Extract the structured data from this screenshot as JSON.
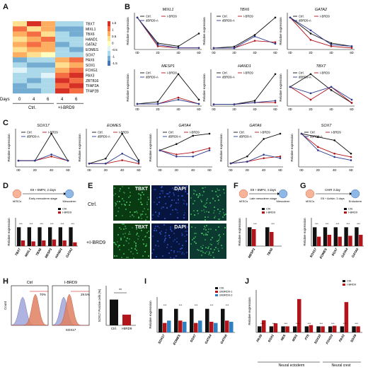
{
  "panels": {
    "A": "A",
    "B": "B",
    "C": "C",
    "D": "D",
    "E": "E",
    "F": "F",
    "G": "G",
    "H": "H",
    "I": "I",
    "J": "J"
  },
  "heatmap": {
    "genes": [
      "TBXT",
      "MIXL1",
      "TBX6",
      "HAND1",
      "GATA2",
      "EOMES",
      "SOX7",
      "PAX6",
      "SOX1",
      "FOXG1",
      "PAX3",
      "ZBTB16",
      "TFAP2A",
      "TFAP2B"
    ],
    "colorbar_ticks": [
      "1.5",
      "1",
      "0.5",
      "0",
      "-0.5",
      "-1",
      "-1.5"
    ],
    "days_label": "Days",
    "days": [
      "0",
      "4",
      "6",
      "4",
      "6"
    ],
    "group_ctrl": "Ctrl.",
    "group_ibrd9": "+I-BRD9"
  },
  "legend": {
    "ctrl": "Ctrl.",
    "ibrd9": "I-BRD9",
    "dbrd9": "dBRD9-A"
  },
  "ylabel_rel": "Relative expression",
  "xticks_days": [
    "0D",
    "2D",
    "4D",
    "6D"
  ],
  "chart_data": [
    {
      "type": "line",
      "title": "MIXL1",
      "series": [
        {
          "name": "Ctrl.",
          "values": [
            1.0,
            0.2,
            0.1,
            0.5
          ]
        },
        {
          "name": "I-BRD9",
          "values": [
            1.0,
            0.1,
            0.05,
            0.05
          ]
        },
        {
          "name": "dBRD9-A",
          "values": [
            1.0,
            0.15,
            0.05,
            0.05
          ]
        }
      ]
    },
    {
      "type": "line",
      "title": "TBX6",
      "series": [
        {
          "name": "Ctrl.",
          "values": [
            0.1,
            0.2,
            1.0,
            2.2
          ]
        },
        {
          "name": "I-BRD9",
          "values": [
            0.1,
            0.1,
            0.6,
            0.5
          ]
        },
        {
          "name": "dBRD9-A",
          "values": [
            0.1,
            0.1,
            0.9,
            0.4
          ]
        }
      ]
    },
    {
      "type": "line",
      "title": "GATA2",
      "series": [
        {
          "name": "Ctrl.",
          "values": [
            1.0,
            0.5,
            0.2,
            0.1
          ]
        },
        {
          "name": "I-BRD9",
          "values": [
            1.0,
            0.3,
            0.1,
            0.05
          ]
        },
        {
          "name": "dBRD9-A",
          "values": [
            1.0,
            0.6,
            0.15,
            0.1
          ]
        }
      ]
    },
    {
      "type": "line",
      "title": "MESP1",
      "series": [
        {
          "name": "Ctrl.",
          "values": [
            0.1,
            0.2,
            1.5,
            0.3
          ]
        },
        {
          "name": "I-BRD9",
          "values": [
            0.1,
            0.1,
            0.4,
            0.1
          ]
        },
        {
          "name": "dBRD9-A",
          "values": [
            0.1,
            0.1,
            0.3,
            0.1
          ]
        }
      ]
    },
    {
      "type": "line",
      "title": "HAND1",
      "series": [
        {
          "name": "Ctrl.",
          "values": [
            0.1,
            0.1,
            0.3,
            1.8
          ]
        },
        {
          "name": "I-BRD9",
          "values": [
            0.1,
            0.1,
            0.2,
            0.2
          ]
        },
        {
          "name": "dBRD9-A",
          "values": [
            0.1,
            0.1,
            0.2,
            0.3
          ]
        }
      ]
    },
    {
      "type": "line",
      "title": "TBXT",
      "series": [
        {
          "name": "Ctrl.",
          "values": [
            0.6,
            1.0,
            0.5,
            0.1
          ]
        },
        {
          "name": "I-BRD9",
          "values": [
            0.6,
            0.2,
            0.6,
            0.1
          ]
        },
        {
          "name": "dBRD9-A",
          "values": [
            0.6,
            0.4,
            0.6,
            0.2
          ]
        }
      ]
    },
    {
      "type": "line",
      "title": "SOX17",
      "series": [
        {
          "name": "Ctrl.",
          "values": [
            0.3,
            0.3,
            1.6,
            0.3
          ]
        },
        {
          "name": "I-BRD9",
          "values": [
            0.3,
            0.3,
            0.5,
            0.3
          ]
        },
        {
          "name": "dBRD9-A",
          "values": [
            0.3,
            0.3,
            0.6,
            0.3
          ]
        }
      ]
    },
    {
      "type": "line",
      "title": "EOMES",
      "series": [
        {
          "name": "Ctrl.",
          "values": [
            0.2,
            0.5,
            2.0,
            0.4
          ]
        },
        {
          "name": "I-BRD9",
          "values": [
            0.2,
            0.2,
            0.4,
            0.2
          ]
        },
        {
          "name": "dBRD9-A",
          "values": [
            0.2,
            0.2,
            0.8,
            0.3
          ]
        }
      ]
    },
    {
      "type": "line",
      "title": "GATA4",
      "series": [
        {
          "name": "Ctrl.",
          "values": [
            0.8,
            1.1,
            1.5,
            1.6
          ]
        },
        {
          "name": "I-BRD9",
          "values": [
            0.8,
            0.6,
            0.7,
            0.9
          ]
        },
        {
          "name": "dBRD9-A",
          "values": [
            0.8,
            0.5,
            0.5,
            0.8
          ]
        }
      ]
    },
    {
      "type": "line",
      "title": "GATA6",
      "series": [
        {
          "name": "Ctrl.",
          "values": [
            0.2,
            0.6,
            1.6,
            1.9
          ]
        },
        {
          "name": "I-BRD9",
          "values": [
            0.2,
            0.3,
            0.5,
            0.6
          ]
        },
        {
          "name": "dBRD9-A",
          "values": [
            0.2,
            0.3,
            0.7,
            0.5
          ]
        }
      ]
    },
    {
      "type": "line",
      "title": "SOX7",
      "series": [
        {
          "name": "Ctrl.",
          "values": [
            1.0,
            0.9,
            0.8,
            0.4
          ]
        },
        {
          "name": "I-BRD9",
          "values": [
            1.0,
            0.6,
            0.4,
            0.3
          ]
        },
        {
          "name": "dBRD9-A",
          "values": [
            1.0,
            0.5,
            0.3,
            0.2
          ]
        }
      ]
    }
  ],
  "panelD": {
    "schematic": {
      "top": "E8 + BMP4, 2 days",
      "left_cell": "hESCs",
      "right_cell": "Mesoderm",
      "bottom": "Early mesoderm stage"
    },
    "legend": [
      "Ctrl.",
      "I-BRD9"
    ],
    "stars": "***",
    "chart_data": {
      "type": "bar",
      "categories": [
        "TBXT",
        "MIXL1",
        "TBX6",
        "MESP1",
        "HAND1",
        "GATA2"
      ],
      "series": [
        {
          "name": "Ctrl.",
          "values": [
            1,
            1,
            1,
            1,
            1,
            1
          ]
        },
        {
          "name": "I-BRD9",
          "values": [
            0.3,
            0.25,
            0.3,
            0.35,
            0.3,
            0.2
          ]
        }
      ],
      "ylim": [
        0,
        1.5
      ]
    }
  },
  "panelE": {
    "rows": [
      "Ctrl.",
      "+I-BRD9"
    ],
    "cols": [
      "TBXT",
      "DAPI"
    ]
  },
  "panelF": {
    "schematic": {
      "top": "E8 + BMP4, 4 days",
      "left_cell": "hESCs",
      "right_cell": "Mesoderm",
      "bottom": "Late mesoderm stage"
    },
    "legend": [
      "Ctrl.",
      "I-BRD9"
    ],
    "stars": "***",
    "chart_data": {
      "type": "bar",
      "categories": [
        "MESP1",
        "TBX6"
      ],
      "series": [
        {
          "name": "Ctrl.",
          "values": [
            1,
            1
          ]
        },
        {
          "name": "I-BRD9",
          "values": [
            0.9,
            0.75
          ]
        }
      ],
      "ylim": [
        0,
        1.5
      ]
    }
  },
  "panelG": {
    "schematic": {
      "top": "CHIR 3 day",
      "left_cell": "hESCs",
      "middle": "E8 + Activin, 3 days",
      "right_cell": "Endoderm"
    },
    "legend": [
      "Ctrl.",
      "I-BRD9"
    ],
    "stars": "***",
    "chart_data": {
      "type": "bar",
      "categories": [
        "SOX17",
        "EOMES",
        "SOX7",
        "GATA4",
        "GATA6"
      ],
      "series": [
        {
          "name": "Ctrl.",
          "values": [
            1,
            1,
            1,
            1,
            1
          ]
        },
        {
          "name": "I-BRD9",
          "values": [
            0.5,
            0.6,
            0.5,
            0.55,
            0.6
          ]
        }
      ],
      "ylim": [
        0,
        1.5
      ]
    }
  },
  "panelH": {
    "hist_titles": [
      "Ctrl",
      "I-BRD9"
    ],
    "percents": [
      "70%",
      "29.5%"
    ],
    "ylabel": "Count",
    "xlabel": "SOX17",
    "bar_ylabel": "SOX17 Positive cells (%)",
    "stars": "**",
    "chart_data": {
      "type": "bar",
      "categories": [
        "Ctrl.",
        "I-BRD9"
      ],
      "values": [
        65,
        27
      ],
      "ylim": [
        0,
        100
      ]
    }
  },
  "panelI": {
    "legend": [
      "Ctrl.",
      "shBRD9-1",
      "shBRD9-2"
    ],
    "stars": "***",
    "chart_data": {
      "type": "bar",
      "categories": [
        "SOX17",
        "EOMES",
        "SOX7",
        "GATA4",
        "GATA6"
      ],
      "series": [
        {
          "name": "Ctrl.",
          "values": [
            1,
            1,
            1,
            1,
            1
          ]
        },
        {
          "name": "shBRD9-1",
          "values": [
            0.4,
            0.5,
            0.4,
            0.45,
            0.5
          ]
        },
        {
          "name": "shBRD9-2",
          "values": [
            0.5,
            0.45,
            0.5,
            0.4,
            0.45
          ]
        }
      ],
      "ylim": [
        0,
        1.5
      ]
    }
  },
  "panelJ": {
    "legend": [
      "Ctrl.",
      "I-BRD9"
    ],
    "stars": "***",
    "group_labels": [
      "Neural ectoderm",
      "Neural crest"
    ],
    "chart_data": {
      "type": "bar",
      "categories": [
        "PAX6",
        "SOX1",
        "NES",
        "MSI1",
        "P75",
        "SOX10",
        "FOXD3",
        "PAX3",
        "SOX9"
      ],
      "series": [
        {
          "name": "Ctrl.",
          "values": [
            1,
            1,
            1,
            1,
            1,
            1,
            1,
            1,
            1
          ]
        },
        {
          "name": "I-BRD9",
          "values": [
            2.0,
            1.5,
            1.0,
            5.5,
            1.2,
            1.0,
            1.1,
            5.0,
            1.0
          ]
        }
      ],
      "ylim": [
        0,
        7
      ]
    }
  },
  "colors": {
    "ctrl": "#111111",
    "ibrd9": "#b3141a",
    "dbrd9": "#2a3a8f",
    "sh2": "#2f80c0"
  }
}
